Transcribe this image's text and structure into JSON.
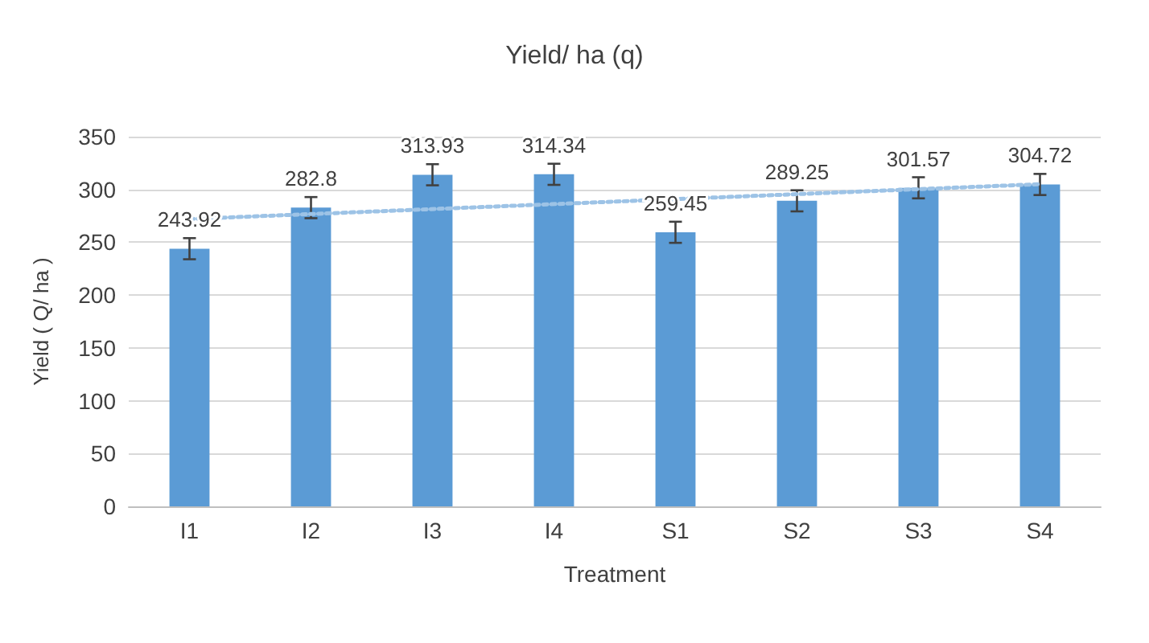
{
  "chart_data": {
    "type": "bar",
    "title": "Yield/ ha (q)",
    "xlabel": "Treatment",
    "ylabel": "Yield ( Q/ ha )",
    "categories": [
      "I1",
      "I2",
      "I3",
      "I4",
      "S1",
      "S2",
      "S3",
      "S4"
    ],
    "series": [
      {
        "color": "#5b9bd5",
        "values": [
          243.92,
          282.8,
          313.93,
          314.34,
          259.45,
          289.25,
          301.57,
          304.72
        ],
        "errors": [
          10,
          10,
          10,
          10,
          10,
          10,
          10,
          10
        ],
        "value_labels": [
          "243.92",
          "282.8",
          "313.93",
          "314.34",
          "259.45",
          "289.25",
          "301.57",
          "304.72"
        ]
      },
      {
        "type": "line",
        "color": "#9dc3e6",
        "x": [
          "I1",
          "S4"
        ],
        "values": [
          272,
          305
        ],
        "line_style": "dotted",
        "marker": "none"
      }
    ],
    "ylim": [
      0,
      350
    ],
    "yticks": [
      0,
      50,
      100,
      150,
      200,
      250,
      300,
      350
    ],
    "grid": "y"
  }
}
